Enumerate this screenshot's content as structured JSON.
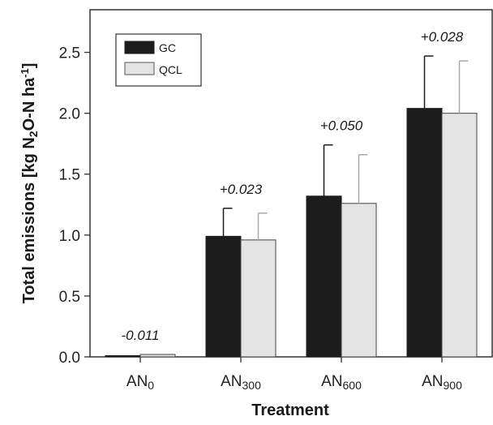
{
  "chart_data": {
    "type": "bar",
    "xlabel": "Treatment",
    "ylabel_parts": {
      "pre": "Total emissions [kg N",
      "sub": "2",
      "mid": "O-N ha",
      "sup": "-1",
      "post": "]"
    },
    "ylim": [
      0,
      2.85
    ],
    "yticks": [
      "0.0",
      "0.5",
      "1.0",
      "1.5",
      "2.0",
      "2.5"
    ],
    "categories": [
      {
        "base": "AN",
        "sub": "0"
      },
      {
        "base": "AN",
        "sub": "300"
      },
      {
        "base": "AN",
        "sub": "600"
      },
      {
        "base": "AN",
        "sub": "900"
      }
    ],
    "series": [
      {
        "name": "GC",
        "color": "#1c1c1c",
        "errColor": "#1c1c1c",
        "values": [
          0.01,
          0.99,
          1.32,
          2.04
        ],
        "errors": [
          0.0,
          0.23,
          0.42,
          0.43
        ]
      },
      {
        "name": "QCL",
        "color": "#e4e4e4",
        "errColor": "#a8a8a8",
        "values": [
          0.02,
          0.96,
          1.26,
          2.0
        ],
        "errors": [
          0.0,
          0.22,
          0.4,
          0.43
        ]
      }
    ],
    "annotations": [
      "-0.011",
      "+0.023",
      "+0.050",
      "+0.028"
    ],
    "legend_position": "top-left",
    "grid": false
  }
}
